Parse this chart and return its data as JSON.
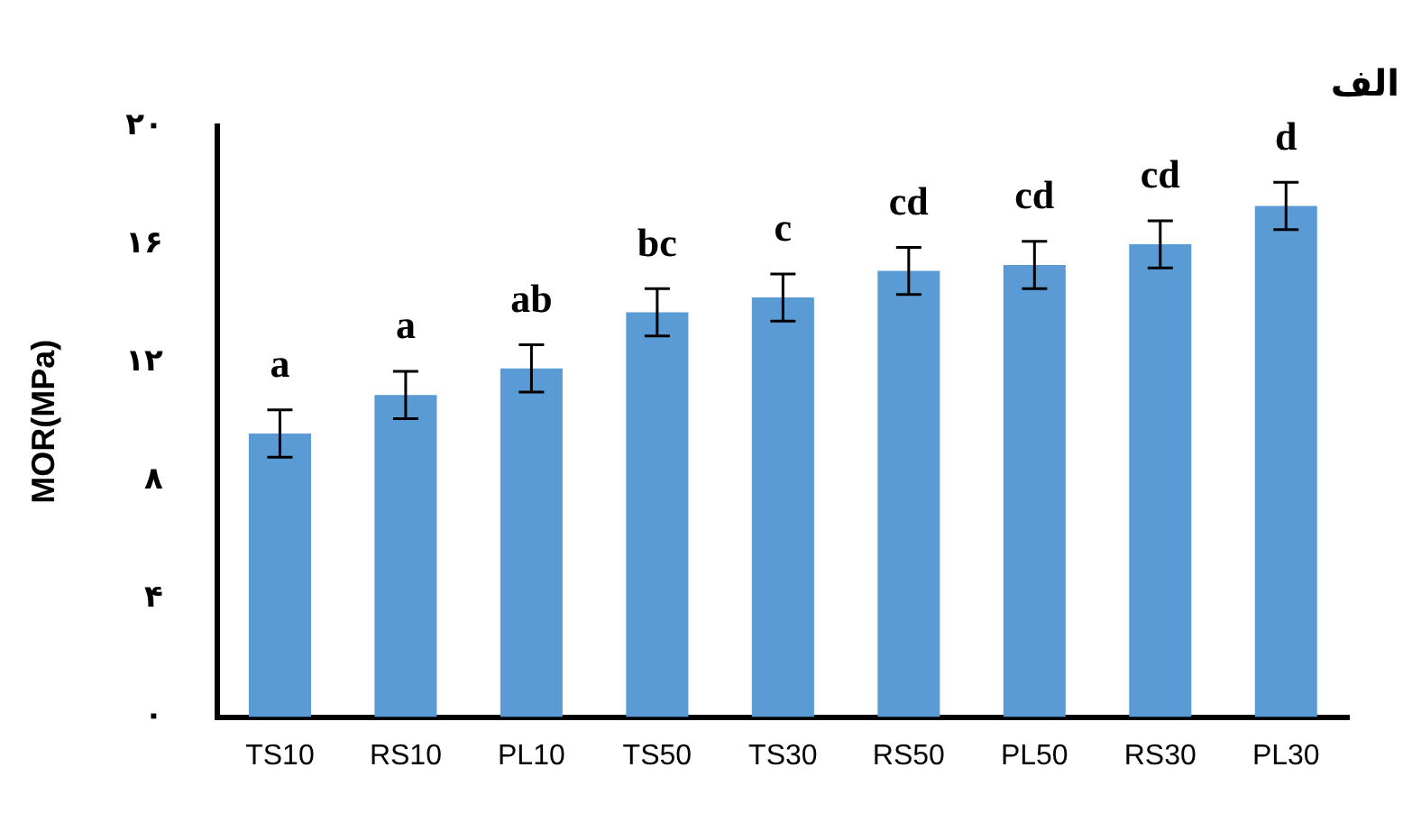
{
  "chart_data": {
    "type": "bar",
    "title": "الف",
    "ylabel": "MOR(MPa)",
    "categories": [
      "TS10",
      "RS10",
      "PL10",
      "TS50",
      "TS30",
      "RS50",
      "PL50",
      "RS30",
      "PL30"
    ],
    "values": [
      9.6,
      10.9,
      11.8,
      13.7,
      14.2,
      15.1,
      15.3,
      16.0,
      17.3
    ],
    "errors": [
      0.8,
      0.8,
      0.8,
      0.8,
      0.8,
      0.8,
      0.8,
      0.8,
      0.8
    ],
    "color": "#5b9bd5",
    "ylim": [
      0,
      20
    ],
    "yticks": [
      {
        "value": 0,
        "label": "۰"
      },
      {
        "value": 4,
        "label": "۴"
      },
      {
        "value": 8,
        "label": "۸"
      },
      {
        "value": 12,
        "label": "۱۲"
      },
      {
        "value": 16,
        "label": "۱۶"
      },
      {
        "value": 20,
        "label": "۲۰"
      }
    ],
    "grid": false,
    "legend": false,
    "annotations": [
      {
        "text": "a",
        "x": "TS10",
        "y": 9.6
      },
      {
        "text": "a",
        "x": "RS10",
        "y": 10.9
      },
      {
        "text": "ab",
        "x": "PL10",
        "y": 11.8
      },
      {
        "text": "bc",
        "x": "TS50",
        "y": 13.7
      },
      {
        "text": "c",
        "x": "TS30",
        "y": 14.2
      },
      {
        "text": "cd",
        "x": "RS50",
        "y": 15.1
      },
      {
        "text": "cd",
        "x": "PL50",
        "y": 15.3
      },
      {
        "text": "cd",
        "x": "RS30",
        "y": 16.0
      },
      {
        "text": "d",
        "x": "PL30",
        "y": 17.3
      }
    ]
  }
}
